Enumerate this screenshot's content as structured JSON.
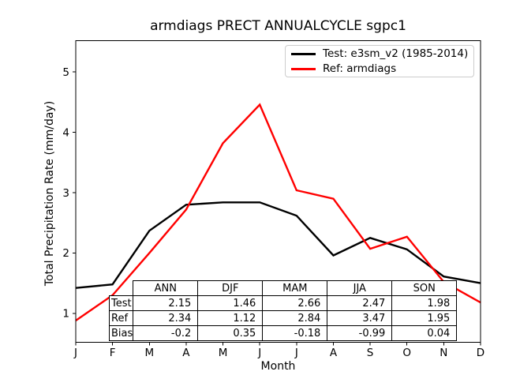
{
  "chart_data": {
    "type": "line",
    "title": "armdiags PRECT ANNUALCYCLE sgpc1",
    "xlabel": "Month",
    "ylabel": "Total Precipitation Rate (mm/day)",
    "x_tick_labels": [
      "J",
      "F",
      "M",
      "A",
      "M",
      "J",
      "J",
      "A",
      "S",
      "O",
      "N",
      "D"
    ],
    "y_ticks": [
      1,
      2,
      3,
      4,
      5
    ],
    "ylim": [
      0.52,
      5.52
    ],
    "grid": false,
    "legend_position": "upper right",
    "series": [
      {
        "name": "Test: e3sm_v2 (1985-2014)",
        "color": "#000000",
        "values": [
          1.42,
          1.48,
          2.37,
          2.8,
          2.84,
          2.84,
          2.62,
          1.96,
          2.25,
          2.06,
          1.61,
          1.5
        ]
      },
      {
        "name": "Ref: armdiags",
        "color": "#ff0000",
        "values": [
          0.88,
          1.3,
          2.0,
          2.72,
          3.82,
          4.46,
          3.04,
          2.9,
          2.07,
          2.27,
          1.52,
          1.18
        ]
      }
    ],
    "table": {
      "columns": [
        "ANN",
        "DJF",
        "MAM",
        "JJA",
        "SON"
      ],
      "rows": [
        {
          "label": "Test",
          "values": [
            "2.15",
            "1.46",
            "2.66",
            "2.47",
            "1.98"
          ]
        },
        {
          "label": "Ref",
          "values": [
            "2.34",
            "1.12",
            "2.84",
            "3.47",
            "1.95"
          ]
        },
        {
          "label": "Bias",
          "values": [
            "-0.2",
            "0.35",
            "-0.18",
            "-0.99",
            "0.04"
          ]
        }
      ]
    }
  }
}
